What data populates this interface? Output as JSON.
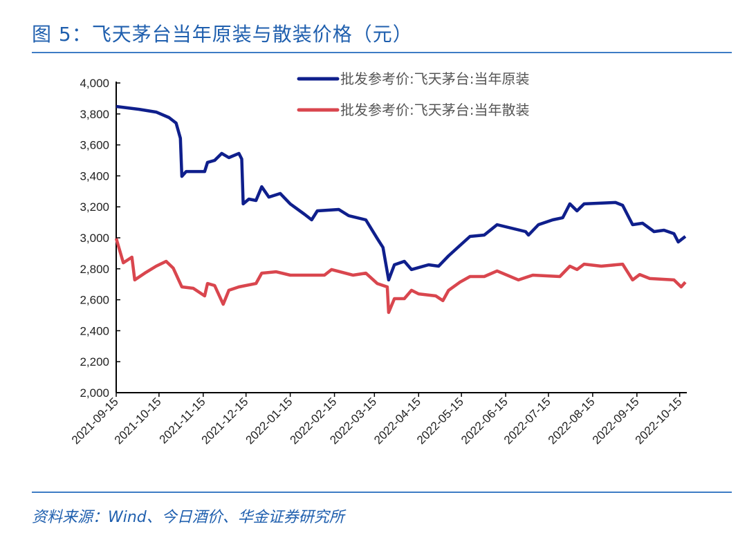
{
  "title": "图 5：飞天茅台当年原装与散装价格（元）",
  "source": "资料来源：Wind、今日酒价、华金证券研究所",
  "colors": {
    "title": "#1f5fae",
    "series_original": "#0f1f8c",
    "series_loose": "#d9464e"
  },
  "chart_data": {
    "type": "line",
    "title": "飞天茅台当年原装与散装价格（元）",
    "xlabel": "",
    "ylabel": "",
    "x_unit": "days since 2021-09-15",
    "xlim": [
      0,
      400
    ],
    "ylim": [
      2000,
      4000
    ],
    "yticks": [
      "2,000",
      "2,200",
      "2,400",
      "2,600",
      "2,800",
      "3,000",
      "3,200",
      "3,400",
      "3,600",
      "3,800",
      "4,000"
    ],
    "xtick_labels": [
      "2021-09-15",
      "2021-10-15",
      "2021-11-15",
      "2021-12-15",
      "2022-01-15",
      "2022-02-15",
      "2022-03-15",
      "2022-04-15",
      "2022-05-15",
      "2022-06-15",
      "2022-07-15",
      "2022-08-15",
      "2022-09-15",
      "2022-10-15"
    ],
    "xtick_days": [
      0,
      30,
      61,
      91,
      122,
      153,
      181,
      212,
      242,
      273,
      303,
      334,
      365,
      395
    ],
    "grid": false,
    "legend_position": "top-right",
    "series": [
      {
        "name": "批发参考价:飞天茅台:当年原装",
        "x": [
          0,
          16,
          28,
          37,
          42,
          45,
          46,
          49,
          62,
          64,
          69,
          74,
          79,
          86,
          88,
          89,
          93,
          98,
          102,
          107,
          115,
          122,
          132,
          137,
          141,
          156,
          163,
          175,
          183,
          187,
          191,
          195,
          202,
          207,
          219,
          226,
          233,
          241,
          248,
          258,
          267,
          287,
          289,
          296,
          306,
          313,
          318,
          323,
          328,
          350,
          355,
          362,
          369,
          377,
          384,
          391,
          394,
          399
        ],
        "values": [
          3848,
          3830,
          3812,
          3777,
          3741,
          3643,
          3397,
          3428,
          3428,
          3487,
          3500,
          3545,
          3518,
          3545,
          3509,
          3219,
          3250,
          3241,
          3330,
          3263,
          3286,
          3219,
          3152,
          3116,
          3174,
          3183,
          3143,
          3116,
          2996,
          2938,
          2728,
          2826,
          2848,
          2795,
          2826,
          2817,
          2884,
          2951,
          3009,
          3018,
          3085,
          3040,
          3018,
          3085,
          3116,
          3130,
          3219,
          3174,
          3219,
          3228,
          3210,
          3085,
          3094,
          3040,
          3049,
          3027,
          2973,
          3009
        ]
      },
      {
        "name": "批发参考价:飞天茅台:当年散装",
        "x": [
          0,
          5,
          11,
          13,
          20,
          28,
          35,
          40,
          46,
          54,
          62,
          64,
          69,
          75,
          79,
          86,
          98,
          102,
          112,
          122,
          146,
          151,
          166,
          175,
          183,
          190,
          191,
          195,
          202,
          207,
          212,
          224,
          229,
          233,
          241,
          248,
          258,
          267,
          282,
          292,
          311,
          318,
          323,
          328,
          340,
          355,
          362,
          367,
          374,
          391,
          396,
          399
        ],
        "values": [
          2996,
          2839,
          2875,
          2728,
          2772,
          2817,
          2848,
          2804,
          2683,
          2674,
          2625,
          2705,
          2692,
          2571,
          2661,
          2683,
          2705,
          2772,
          2781,
          2759,
          2759,
          2795,
          2759,
          2772,
          2705,
          2683,
          2518,
          2607,
          2607,
          2661,
          2638,
          2625,
          2594,
          2661,
          2714,
          2750,
          2750,
          2786,
          2728,
          2759,
          2750,
          2817,
          2795,
          2830,
          2817,
          2830,
          2728,
          2763,
          2737,
          2728,
          2683,
          2714
        ]
      }
    ]
  }
}
